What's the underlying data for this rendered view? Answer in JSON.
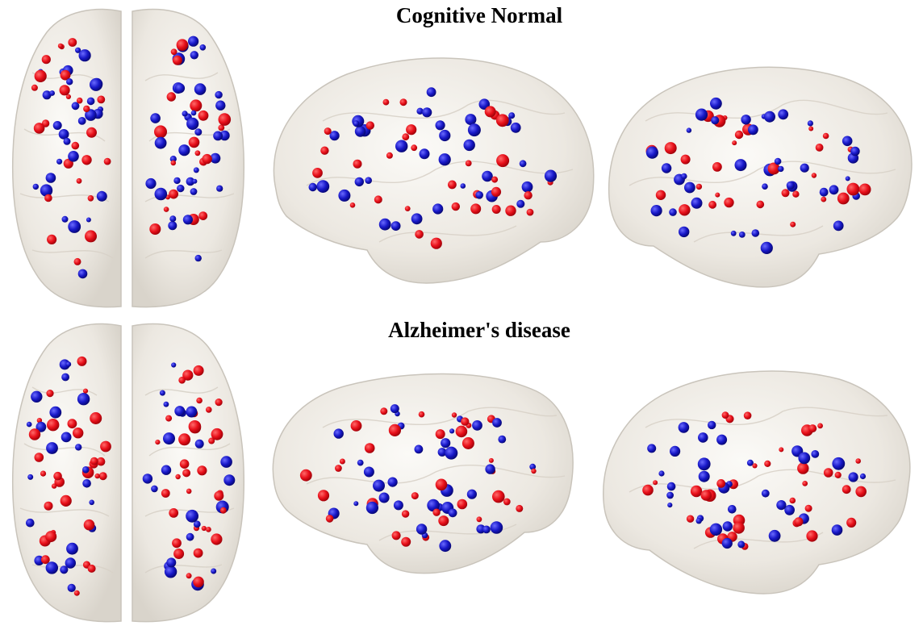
{
  "panels": [
    {
      "title": "Cognitive Normal"
    },
    {
      "title": "Alzheimer's disease"
    }
  ],
  "colors": {
    "node_red": "#e8101a",
    "node_blue": "#1818c8",
    "brain_fill": "#f2efe9",
    "brain_edge": "#c9c4bb"
  }
}
